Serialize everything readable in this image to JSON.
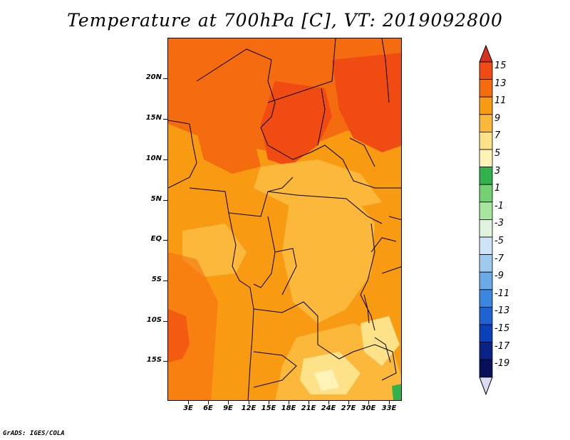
{
  "title": "Temperature at 700hPa [C], VT: 2019092800",
  "credit": "GrADS: IGES/COLA",
  "map": {
    "lat_labels": [
      "20N",
      "15N",
      "10N",
      "5N",
      "EQ",
      "5S",
      "10S",
      "15S"
    ],
    "lon_labels": [
      "3E",
      "6E",
      "9E",
      "12E",
      "15E",
      "18E",
      "21E",
      "24E",
      "27E",
      "30E",
      "33E"
    ]
  },
  "colorbar": {
    "labels": [
      "15",
      "13",
      "11",
      "9",
      "7",
      "5",
      "3",
      "1",
      "-1",
      "-3",
      "-5",
      "-7",
      "-9",
      "-11",
      "-13",
      "-15",
      "-17",
      "-19"
    ],
    "colors": [
      "#d7301f",
      "#f04b12",
      "#f56b0f",
      "#f89a12",
      "#fbb83a",
      "#fde289",
      "#fff3b8",
      "#2fb34a",
      "#74d171",
      "#a8e6a0",
      "#def4dc",
      "#cde3f6",
      "#9fcaf0",
      "#6aaae8",
      "#3a86e0",
      "#1e62d3",
      "#0c40b8",
      "#0a2386",
      "#08105a",
      "#dcdcf0"
    ]
  }
}
